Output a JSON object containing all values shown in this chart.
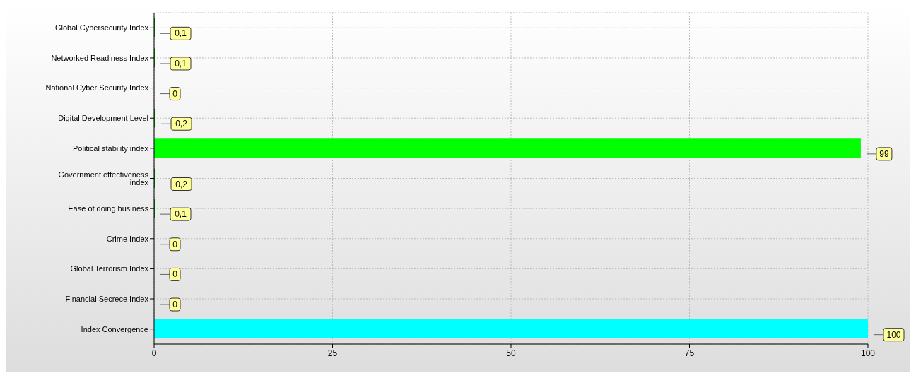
{
  "chart_data": {
    "type": "bar",
    "orientation": "horizontal",
    "categories": [
      "Global Cybersecurity Index",
      "Networked Readiness Index",
      "National Cyber Security Index",
      "Digital Development Level",
      "Political stability index",
      "Government effectiveness index",
      "Ease of doing business",
      "Crime Index",
      "Global Terrorism Index",
      "Financial Secrece Index",
      "Index Convergence"
    ],
    "values": [
      0.1,
      0.1,
      0,
      0.2,
      99,
      0.2,
      0.1,
      0,
      0,
      0,
      100
    ],
    "colors": [
      "#00a000",
      "#00a000",
      "#00a000",
      "#00a000",
      "#00ff00",
      "#00a000",
      "#00a000",
      "#00a000",
      "#00a000",
      "#00a000",
      "#00ffff"
    ],
    "value_labels": [
      "0,1",
      "0,1",
      "0",
      "0,2",
      "99",
      "0,2",
      "0,1",
      "0",
      "0",
      "0",
      "100"
    ],
    "xlim": [
      0,
      100
    ],
    "xticks": [
      0,
      25,
      50,
      75,
      100
    ],
    "grid": true
  }
}
